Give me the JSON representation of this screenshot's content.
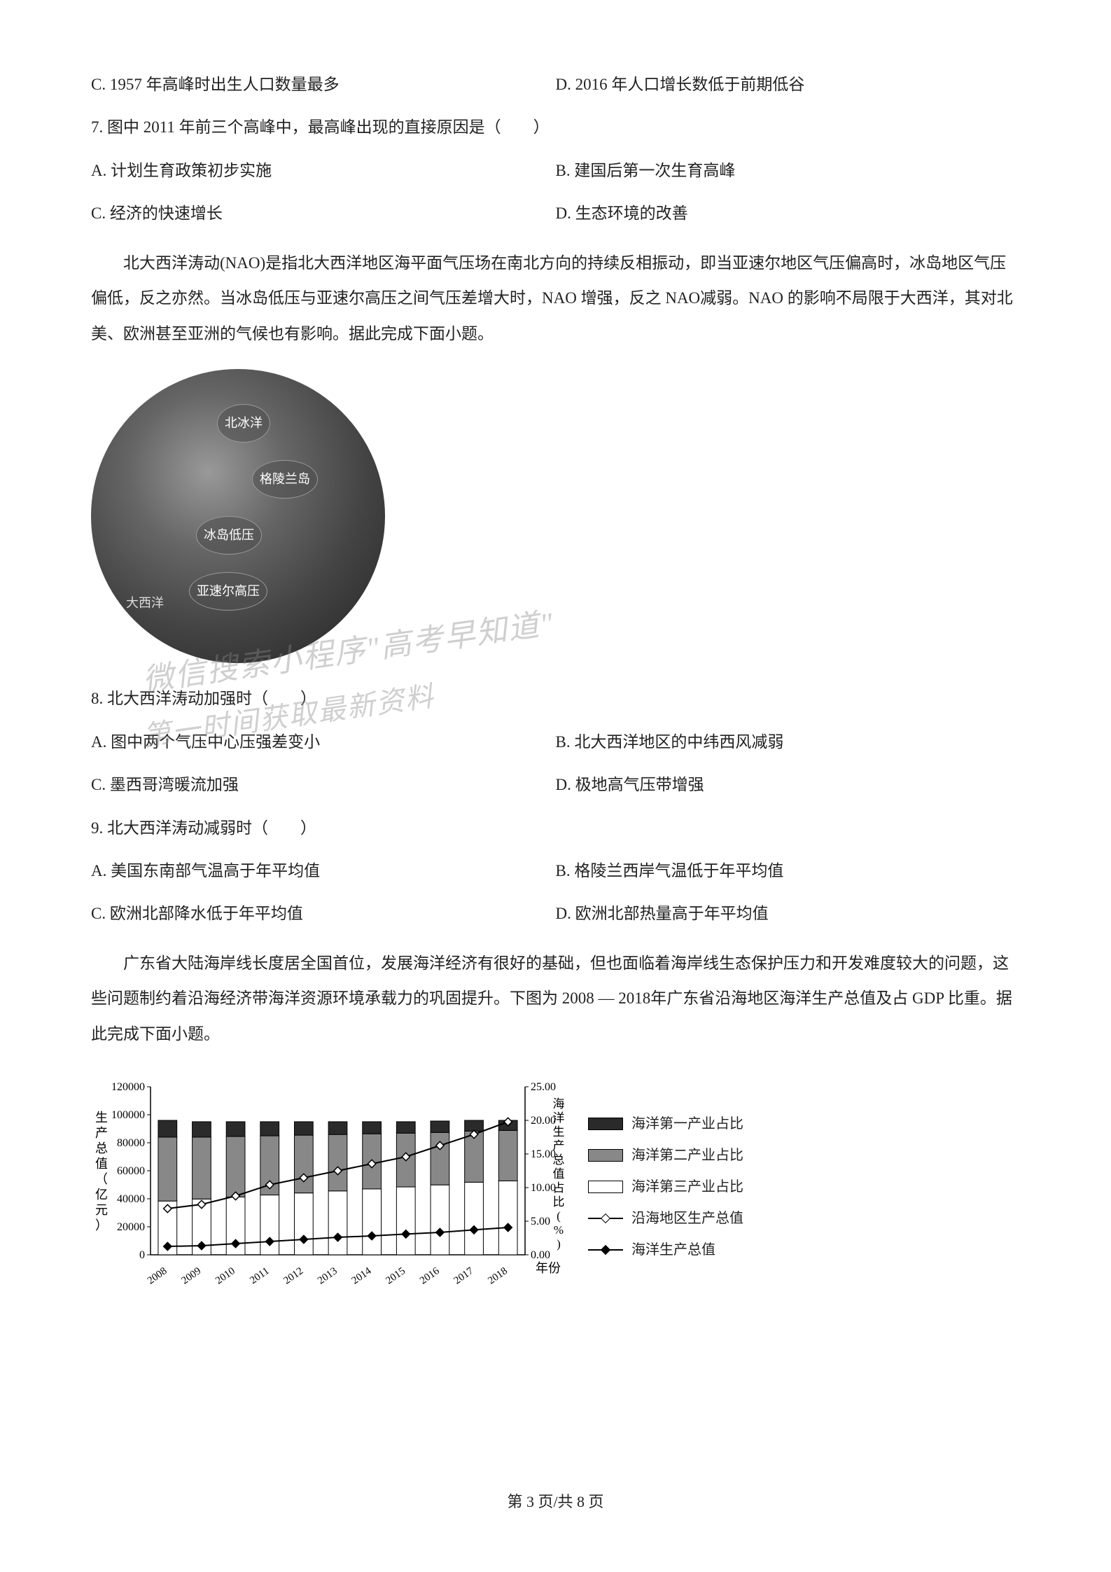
{
  "options_cd_6": {
    "c": "C. 1957 年高峰时出生人口数量最多",
    "d": "D. 2016 年人口增长数低于前期低谷"
  },
  "question7": {
    "stem": "7. 图中 2011 年前三个高峰中，最高峰出现的直接原因是（　　）",
    "a": "A. 计划生育政策初步实施",
    "b": "B. 建国后第一次生育高峰",
    "c": "C. 经济的快速增长",
    "d": "D. 生态环境的改善"
  },
  "passage1": "北大西洋涛动(NAO)是指北大西洋地区海平面气压场在南北方向的持续反相振动，即当亚速尔地区气压偏高时，冰岛地区气压偏低，反之亦然。当冰岛低压与亚速尔高压之间气压差增大时，NAO 增强，反之 NAO减弱。NAO 的影响不局限于大西洋，其对北美、欧洲甚至亚洲的气候也有影响。据此完成下面小题。",
  "globe_labels": {
    "beibing": "北冰洋",
    "gelinglan": "格陵兰岛",
    "bindao_diya": "冰岛低压",
    "yasuer_gaoya": "亚速尔高压",
    "daxiyang": "大西洋"
  },
  "question8": {
    "stem": "8. 北大西洋涛动加强时（　　）",
    "a": "A. 图中两个气压中心压强差变小",
    "b": "B. 北大西洋地区的中纬西风减弱",
    "c": "C. 墨西哥湾暖流加强",
    "d": "D. 极地高气压带增强"
  },
  "question9": {
    "stem": "9. 北大西洋涛动减弱时（　　）",
    "a": "A. 美国东南部气温高于年平均值",
    "b": "B. 格陵兰西岸气温低于年平均值",
    "c": "C. 欧洲北部降水低于年平均值",
    "d": "D. 欧洲北部热量高于年平均值"
  },
  "passage2": "广东省大陆海岸线长度居全国首位，发展海洋经济有很好的基础，但也面临着海岸线生态保护压力和开发难度较大的问题，这些问题制约着沿海经济带海洋资源环境承载力的巩固提升。下图为 2008 — 2018年广东省沿海地区海洋生产总值及占 GDP 比重。据此完成下面小题。",
  "chart": {
    "type": "combo-bar-line",
    "years": [
      "2008",
      "2009",
      "2010",
      "2011",
      "2012",
      "2013",
      "2014",
      "2015",
      "2016",
      "2017",
      "2018"
    ],
    "y_left_label": "生产总值（亿元）",
    "y_left_ticks": [
      0,
      20000,
      40000,
      60000,
      80000,
      100000,
      120000
    ],
    "y_right_label": "海洋生产总值占比(%)",
    "y_right_ticks": [
      0,
      5.0,
      10.0,
      15.0,
      20.0,
      25.0
    ],
    "bar_series": {
      "primary": {
        "label": "海洋第一产业占比",
        "color": "#2a2a2a",
        "values": [
          2.5,
          2.3,
          2.2,
          2.1,
          2.0,
          1.9,
          1.8,
          1.7,
          1.7,
          1.6,
          1.5
        ]
      },
      "secondary": {
        "label": "海洋第二产业占比",
        "color": "#888888",
        "values": [
          9.5,
          9.2,
          9.0,
          8.8,
          8.6,
          8.4,
          8.2,
          8.0,
          7.8,
          7.6,
          7.5
        ]
      },
      "tertiary": {
        "label": "海洋第三产业占比",
        "color": "#ffffff",
        "values": [
          8.0,
          8.3,
          8.6,
          8.9,
          9.2,
          9.5,
          9.8,
          10.1,
          10.4,
          10.8,
          11.0
        ]
      }
    },
    "line_series": {
      "coastal_total": {
        "label": "沿海地区生产总值",
        "values": [
          33000,
          36000,
          42000,
          50000,
          55000,
          60000,
          65000,
          70000,
          78000,
          86000,
          95000
        ]
      },
      "marine_total": {
        "label": "海洋生产总值",
        "values": [
          6000,
          6500,
          8000,
          9500,
          11000,
          12500,
          13500,
          14800,
          16000,
          17800,
          19500
        ]
      }
    },
    "x_label": "年份",
    "background_color": "#ffffff",
    "axis_color": "#000000",
    "font_size_axis": 16,
    "bar_group_width": 0.8
  },
  "legend": {
    "item1": "海洋第一产业占比",
    "item2": "海洋第二产业占比",
    "item3": "海洋第三产业占比",
    "item4": "沿海地区生产总值",
    "item5": "海洋生产总值"
  },
  "watermark": {
    "line1": "微信搜索小程序\"高考早知道\"",
    "line2": "第一时间获取最新资料"
  },
  "footer": "第 3 页/共 8 页"
}
